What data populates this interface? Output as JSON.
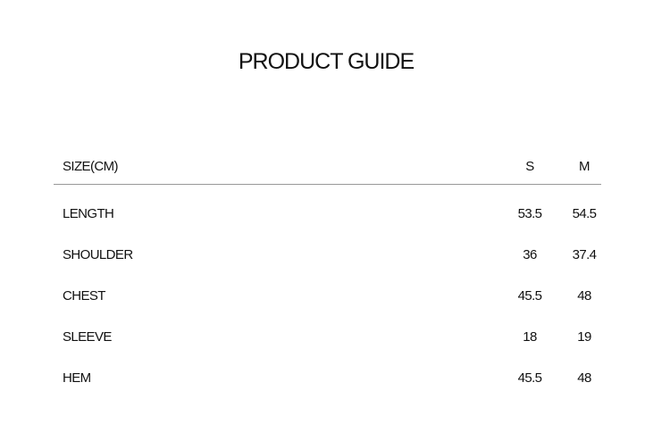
{
  "title": "PRODUCT GUIDE",
  "table": {
    "header": [
      "SIZE(CM)",
      "S",
      "M"
    ],
    "rows": [
      [
        "LENGTH",
        "53.5",
        "54.5"
      ],
      [
        "SHOULDER",
        "36",
        "37.4"
      ],
      [
        "CHEST",
        "45.5",
        "48"
      ],
      [
        "SLEEVE",
        "18",
        "19"
      ],
      [
        "HEM",
        "45.5",
        "48"
      ]
    ]
  }
}
